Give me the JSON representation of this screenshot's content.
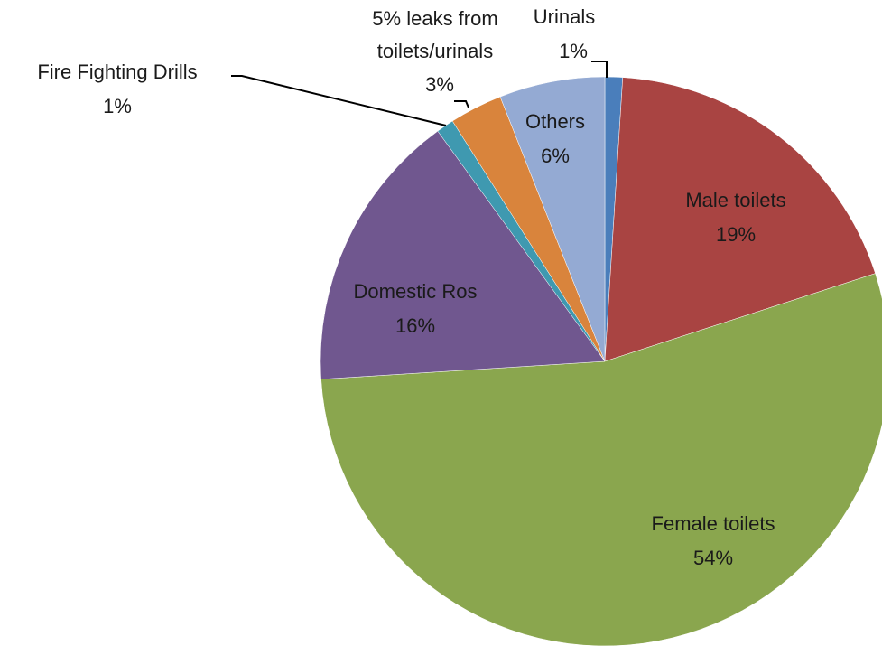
{
  "chart_data": {
    "type": "pie",
    "categories": [
      "Urinals",
      "Male toilets",
      "Female toilets",
      "Domestic Ros",
      "Fire Fighting Drills",
      "5% leaks from toilets/urinals",
      "Others"
    ],
    "values": [
      1,
      19,
      54,
      16,
      1,
      3,
      6
    ],
    "value_labels": [
      "1%",
      "19%",
      "54%",
      "16%",
      "1%",
      "3%",
      "6%"
    ],
    "colors": [
      "#4a7ebb",
      "#a94442",
      "#8aa64e",
      "#70578f",
      "#3f99b0",
      "#d9843c",
      "#94aad3"
    ]
  }
}
